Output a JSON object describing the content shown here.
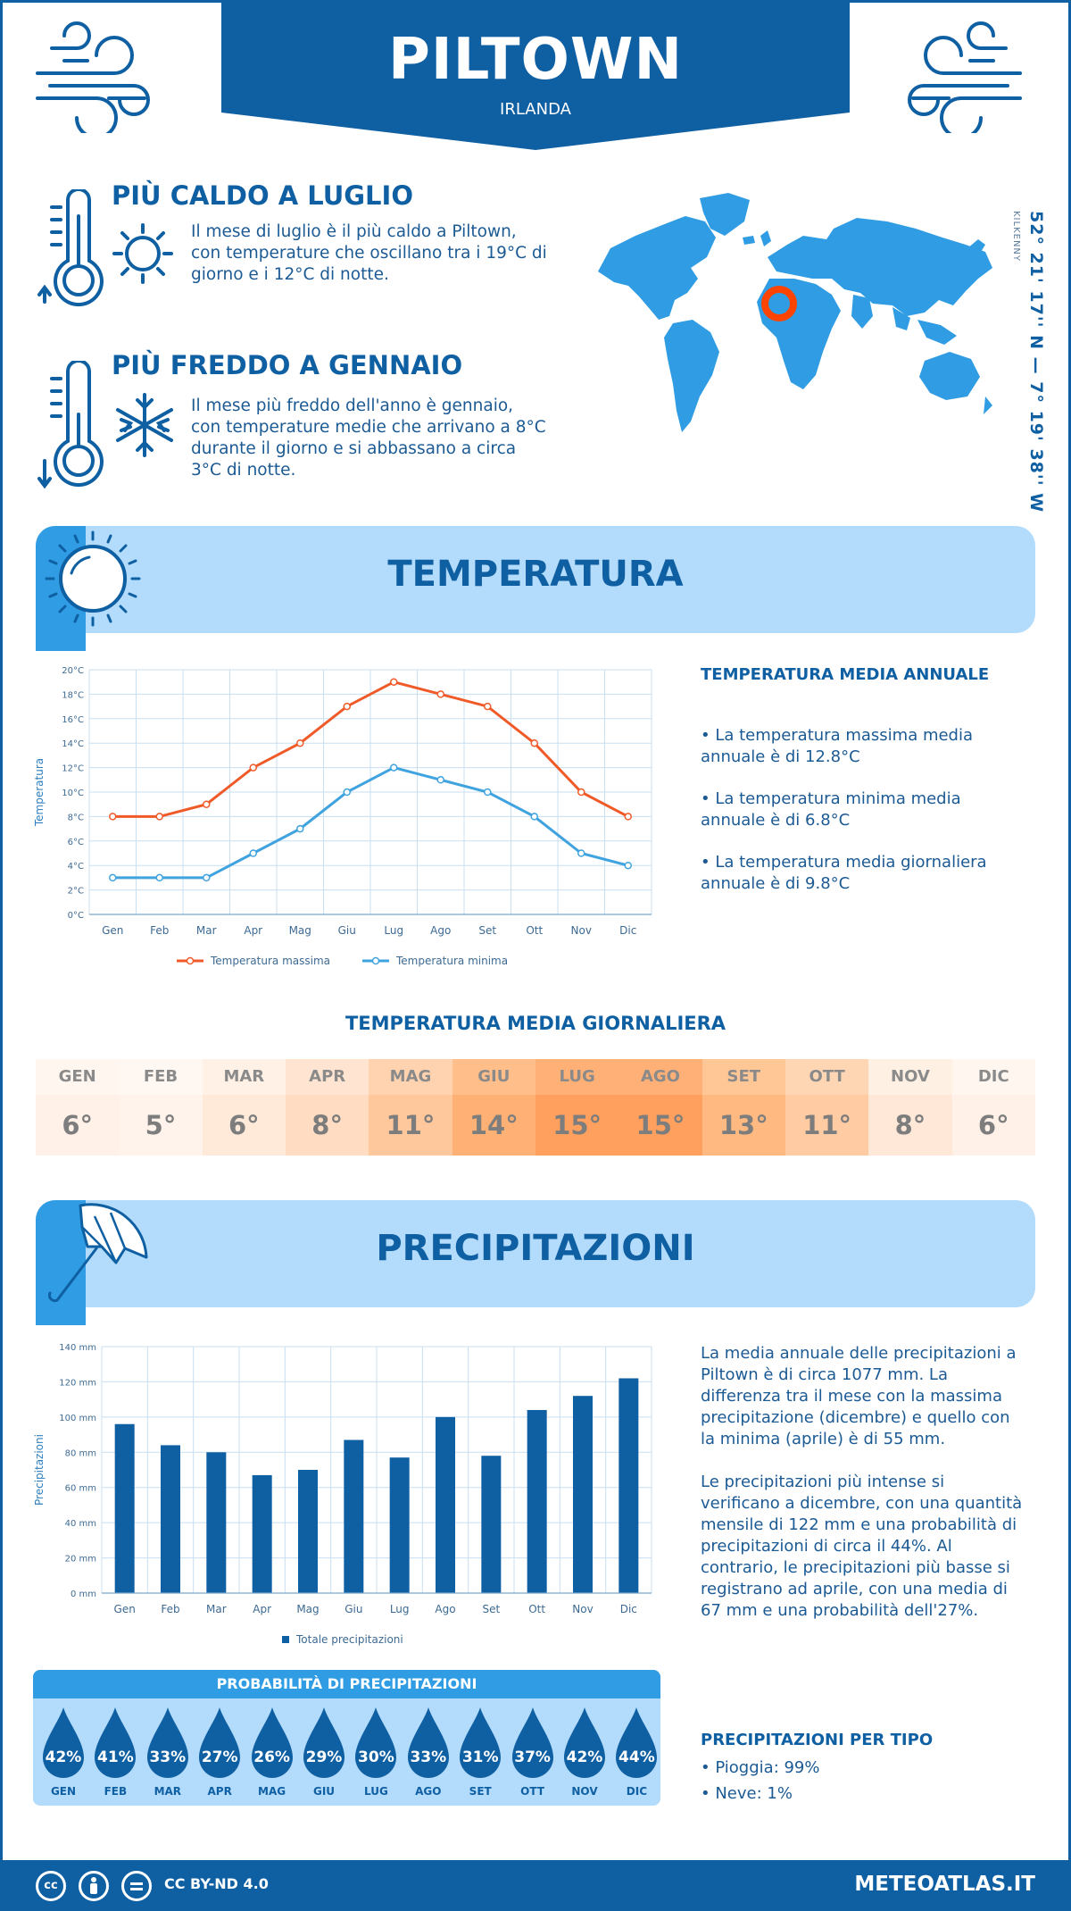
{
  "header": {
    "city": "PILTOWN",
    "country": "IRLANDA"
  },
  "icons": {
    "wind": "wind-icon",
    "hot": "thermometer-sun-icon",
    "cold": "thermometer-snowflake-icon",
    "sun": "sun-icon",
    "umbrella": "umbrella-icon",
    "map": "world-map-icon",
    "location": "location-marker-icon"
  },
  "colors": {
    "primary": "#0f5fa3",
    "light": "#b3dbfb",
    "accent": "#2f9ce3",
    "max_line": "#f05a28",
    "min_line": "#3fa3df",
    "marker": "#ff4400"
  },
  "hot": {
    "title": "PIÙ CALDO A LUGLIO",
    "text": "Il mese di luglio è il più caldo a Piltown, con temperature che oscillano tra i 19°C di giorno e i 12°C di notte."
  },
  "cold": {
    "title": "PIÙ FREDDO A GENNAIO",
    "text": "Il mese più freddo dell'anno è gennaio, con temperature medie che arrivano a 8°C durante il giorno e si abbassano a circa 3°C di notte."
  },
  "location": {
    "coords": "52° 21' 17'' N — 7° 19' 38'' W",
    "region": "KILKENNY"
  },
  "temperature_section": {
    "title": "TEMPERATURA",
    "annual_title": "TEMPERATURA MEDIA ANNUALE",
    "bullets": [
      "• La temperatura massima media annuale è di 12.8°C",
      "• La temperatura minima media annuale è di 6.8°C",
      "• La temperatura media giornaliera annuale è di 9.8°C"
    ]
  },
  "daily": {
    "title": "TEMPERATURA MEDIA GIORNALIERA",
    "months": [
      "GEN",
      "FEB",
      "MAR",
      "APR",
      "MAG",
      "GIU",
      "LUG",
      "AGO",
      "SET",
      "OTT",
      "NOV",
      "DIC"
    ],
    "values": [
      "6°",
      "5°",
      "6°",
      "8°",
      "11°",
      "14°",
      "15°",
      "15°",
      "13°",
      "11°",
      "8°",
      "6°"
    ],
    "bg_head": [
      "#fff6f0",
      "#fff7f2",
      "#fff1e6",
      "#ffe5d1",
      "#ffd3b0",
      "#ffbe8a",
      "#ffb077",
      "#ffb077",
      "#ffc696",
      "#ffd6b4",
      "#fff0e4",
      "#fff6f0"
    ],
    "bg_val": [
      "#fff1e8",
      "#fff3ec",
      "#ffead9",
      "#ffdcc2",
      "#ffc79c",
      "#ffb074",
      "#ffa05e",
      "#ffa05e",
      "#ffb981",
      "#ffcba2",
      "#ffe8d8",
      "#fff1e8"
    ]
  },
  "precip_section": {
    "title": "PRECIPITAZIONI",
    "p1": "La media annuale delle precipitazioni a Piltown è di circa 1077 mm. La differenza tra il mese con la massima precipitazione (dicembre) e quello con la minima (aprile) è di 55 mm.",
    "p2": "Le precipitazioni più intense si verificano a dicembre, con una quantità mensile di 122 mm e una probabilità di precipitazioni di circa il 44%. Al contrario, le precipitazioni più basse si registrano ad aprile, con una media di 67 mm e una probabilità dell'27%.",
    "prob_title": "PROBABILITÀ DI PRECIPITAZIONI",
    "prob_months": [
      "GEN",
      "FEB",
      "MAR",
      "APR",
      "MAG",
      "GIU",
      "LUG",
      "AGO",
      "SET",
      "OTT",
      "NOV",
      "DIC"
    ],
    "prob_values": [
      "42%",
      "41%",
      "33%",
      "27%",
      "26%",
      "29%",
      "30%",
      "33%",
      "31%",
      "37%",
      "42%",
      "44%"
    ],
    "type_title": "PRECIPITAZIONI PER TIPO",
    "type_rain": "• Pioggia: 99%",
    "type_snow": "• Neve: 1%"
  },
  "chart_data": [
    {
      "type": "line",
      "categories": [
        "Gen",
        "Feb",
        "Mar",
        "Apr",
        "Mag",
        "Giu",
        "Lug",
        "Ago",
        "Set",
        "Ott",
        "Nov",
        "Dic"
      ],
      "series": [
        {
          "name": "Temperatura massima",
          "values": [
            8,
            8,
            9,
            12,
            14,
            17,
            19,
            18,
            17,
            14,
            10,
            8
          ]
        },
        {
          "name": "Temperatura minima",
          "values": [
            3,
            3,
            3,
            5,
            7,
            10,
            12,
            11,
            10,
            8,
            5,
            4
          ]
        }
      ],
      "ylabel": "Temperatura",
      "ylim": [
        0,
        20
      ],
      "yticks": [
        "0°C",
        "2°C",
        "4°C",
        "6°C",
        "8°C",
        "10°C",
        "12°C",
        "14°C",
        "16°C",
        "18°C",
        "20°C"
      ],
      "grid": true,
      "legend": "bottom"
    },
    {
      "type": "bar",
      "categories": [
        "Gen",
        "Feb",
        "Mar",
        "Apr",
        "Mag",
        "Giu",
        "Lug",
        "Ago",
        "Set",
        "Ott",
        "Nov",
        "Dic"
      ],
      "series": [
        {
          "name": "Totale precipitazioni",
          "values": [
            96,
            84,
            80,
            67,
            70,
            87,
            77,
            100,
            78,
            104,
            112,
            122
          ]
        }
      ],
      "ylabel": "Precipitazioni",
      "ylim": [
        0,
        140
      ],
      "yticks": [
        "0 mm",
        "20 mm",
        "40 mm",
        "60 mm",
        "80 mm",
        "100 mm",
        "120 mm",
        "140 mm"
      ],
      "grid": true,
      "legend": "bottom"
    }
  ],
  "footer": {
    "license": "CC BY-ND 4.0",
    "brand": "METEOATLAS.IT",
    "cc_icons": [
      "cc",
      "by",
      "nd"
    ]
  }
}
